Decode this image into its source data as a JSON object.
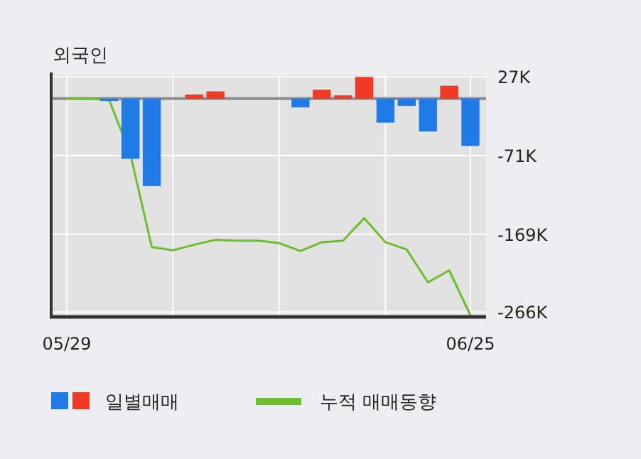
{
  "chart_data": {
    "type": "bar",
    "title": "외국인",
    "categories": [
      "05/29",
      null,
      null,
      null,
      null,
      null,
      null,
      null,
      null,
      null,
      null,
      null,
      null,
      null,
      null,
      null,
      null,
      null,
      null,
      "06/25"
    ],
    "series": [
      {
        "name": "일별매매",
        "colors": [
          "#1e7be8",
          "#1e7be8",
          "#1e7be8",
          "#1e7be8",
          "#1e7be8",
          "#1e7be8",
          "#f03a24",
          "#f03a24",
          "#1e7be8",
          "#1e7be8",
          "#1e7be8",
          "#1e7be8",
          "#f03a24",
          "#f03a24",
          "#f03a24",
          "#1e7be8",
          "#1e7be8",
          "#1e7be8",
          "#f03a24",
          "#1e7be8"
        ],
        "values": [
          0,
          0,
          -3,
          -75,
          -109,
          0,
          5,
          9,
          0,
          0,
          0,
          -11,
          11,
          4,
          27,
          -30,
          -9,
          -41,
          16,
          -59
        ]
      },
      {
        "name": "누적 매매동향",
        "type": "line",
        "color": "#6cbf2a",
        "values": [
          0,
          0,
          -2,
          -70,
          -185,
          -189,
          -182,
          -176,
          -177,
          -177,
          -180,
          -190,
          -179,
          -177,
          -149,
          -179,
          -188,
          -229,
          -214,
          -270
        ]
      }
    ],
    "ylim": [
      -272,
      29
    ],
    "yticks": [
      {
        "value": 27,
        "label": "27K"
      },
      {
        "value": -71,
        "label": "-71K"
      },
      {
        "value": -169,
        "label": "-169K"
      },
      {
        "value": -266,
        "label": "-266K"
      }
    ],
    "ref_lines": [
      {
        "axis": "y",
        "value": 0,
        "color": "#8c8c8c"
      }
    ],
    "grid": true,
    "legend": "bottom",
    "marker": "none",
    "line_style": "solid"
  }
}
